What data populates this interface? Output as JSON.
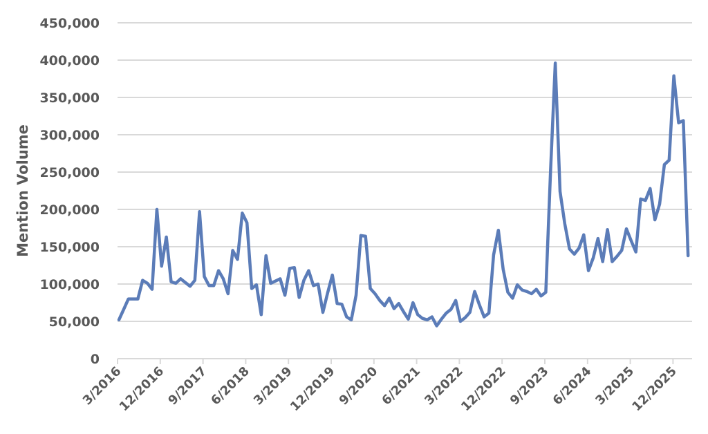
{
  "chart_data": {
    "type": "line",
    "title": "",
    "xlabel": "",
    "ylabel": "Mention Volume",
    "ylim": [
      0,
      450000
    ],
    "yticks": [
      0,
      50000,
      100000,
      150000,
      200000,
      250000,
      300000,
      350000,
      400000,
      450000
    ],
    "ytick_labels": [
      "0",
      "50,000",
      "100,000",
      "150,000",
      "200,000",
      "250,000",
      "300,000",
      "350,000",
      "400,000",
      "450,000"
    ],
    "xtick_labels": [
      "3/2016",
      "12/2016",
      "9/2017",
      "6/2018",
      "3/2019",
      "12/2019",
      "9/2020",
      "6/2021",
      "3/2022",
      "12/2022",
      "9/2023",
      "6/2024",
      "3/2025",
      "12/2025"
    ],
    "grid": true,
    "legend": null,
    "line_color": "#5B7CB8",
    "x_start": "3/2016",
    "x_interval": "monthly",
    "series": [
      {
        "name": "Mention Volume",
        "x": [
          "3/2016",
          "4/2016",
          "5/2016",
          "6/2016",
          "7/2016",
          "8/2016",
          "9/2016",
          "10/2016",
          "11/2016",
          "12/2016",
          "1/2017",
          "2/2017",
          "3/2017",
          "4/2017",
          "5/2017",
          "6/2017",
          "7/2017",
          "8/2017",
          "9/2017",
          "10/2017",
          "11/2017",
          "12/2017",
          "1/2018",
          "2/2018",
          "3/2018",
          "4/2018",
          "5/2018",
          "6/2018",
          "7/2018",
          "8/2018",
          "9/2018",
          "10/2018",
          "11/2018",
          "12/2018",
          "1/2019",
          "2/2019",
          "3/2019",
          "4/2019",
          "5/2019",
          "6/2019",
          "7/2019",
          "8/2019",
          "9/2019",
          "10/2019",
          "11/2019",
          "12/2019",
          "1/2020",
          "2/2020",
          "3/2020",
          "4/2020",
          "5/2020",
          "6/2020",
          "7/2020",
          "8/2020",
          "9/2020",
          "10/2020",
          "11/2020",
          "12/2020",
          "1/2021",
          "2/2021",
          "3/2021",
          "4/2021",
          "5/2021",
          "6/2021",
          "7/2021",
          "8/2021",
          "9/2021",
          "10/2021",
          "11/2021",
          "12/2021",
          "1/2022",
          "2/2022",
          "3/2022",
          "4/2022",
          "5/2022",
          "6/2022",
          "7/2022",
          "8/2022",
          "9/2022",
          "10/2022",
          "11/2022",
          "12/2022",
          "1/2023",
          "2/2023",
          "3/2023",
          "4/2023",
          "5/2023",
          "6/2023",
          "7/2023",
          "8/2023",
          "9/2023",
          "10/2023",
          "11/2023",
          "12/2023",
          "1/2024",
          "2/2024",
          "3/2024",
          "4/2024",
          "5/2024",
          "6/2024",
          "7/2024",
          "8/2024",
          "9/2024",
          "10/2024",
          "11/2024",
          "12/2024",
          "1/2025",
          "2/2025",
          "3/2025",
          "4/2025",
          "5/2025",
          "6/2025",
          "7/2025",
          "8/2025",
          "9/2025",
          "10/2025",
          "11/2025",
          "12/2025",
          "1/2026",
          "2/2026",
          "3/2026"
        ],
        "values": [
          52000,
          66000,
          80000,
          80000,
          80000,
          105000,
          101000,
          93000,
          200000,
          124000,
          163000,
          103000,
          101000,
          107000,
          102000,
          97000,
          105000,
          197000,
          110000,
          98000,
          98000,
          118000,
          107000,
          87000,
          145000,
          133000,
          195000,
          182000,
          94000,
          99000,
          59000,
          138000,
          101000,
          104000,
          107000,
          85000,
          121000,
          122000,
          82000,
          105000,
          118000,
          98000,
          100000,
          62000,
          88000,
          112000,
          74000,
          73000,
          56000,
          52000,
          85000,
          165000,
          164000,
          94000,
          87000,
          78000,
          71000,
          81000,
          67000,
          74000,
          63000,
          53000,
          75000,
          59000,
          54000,
          52000,
          56000,
          44000,
          53000,
          61000,
          66000,
          78000,
          50000,
          55000,
          62000,
          90000,
          72000,
          56000,
          61000,
          139000,
          172000,
          120000,
          89000,
          81000,
          99000,
          92000,
          90000,
          87000,
          93000,
          84000,
          89000,
          252000,
          396000,
          224000,
          181000,
          147000,
          140000,
          148000,
          166000,
          118000,
          135000,
          161000,
          130000,
          173000,
          130000,
          137000,
          145000,
          174000,
          158000,
          143000,
          214000,
          212000,
          228000,
          186000,
          207000,
          260000,
          266000,
          379000,
          316000,
          319000,
          138000
        ]
      }
    ]
  }
}
